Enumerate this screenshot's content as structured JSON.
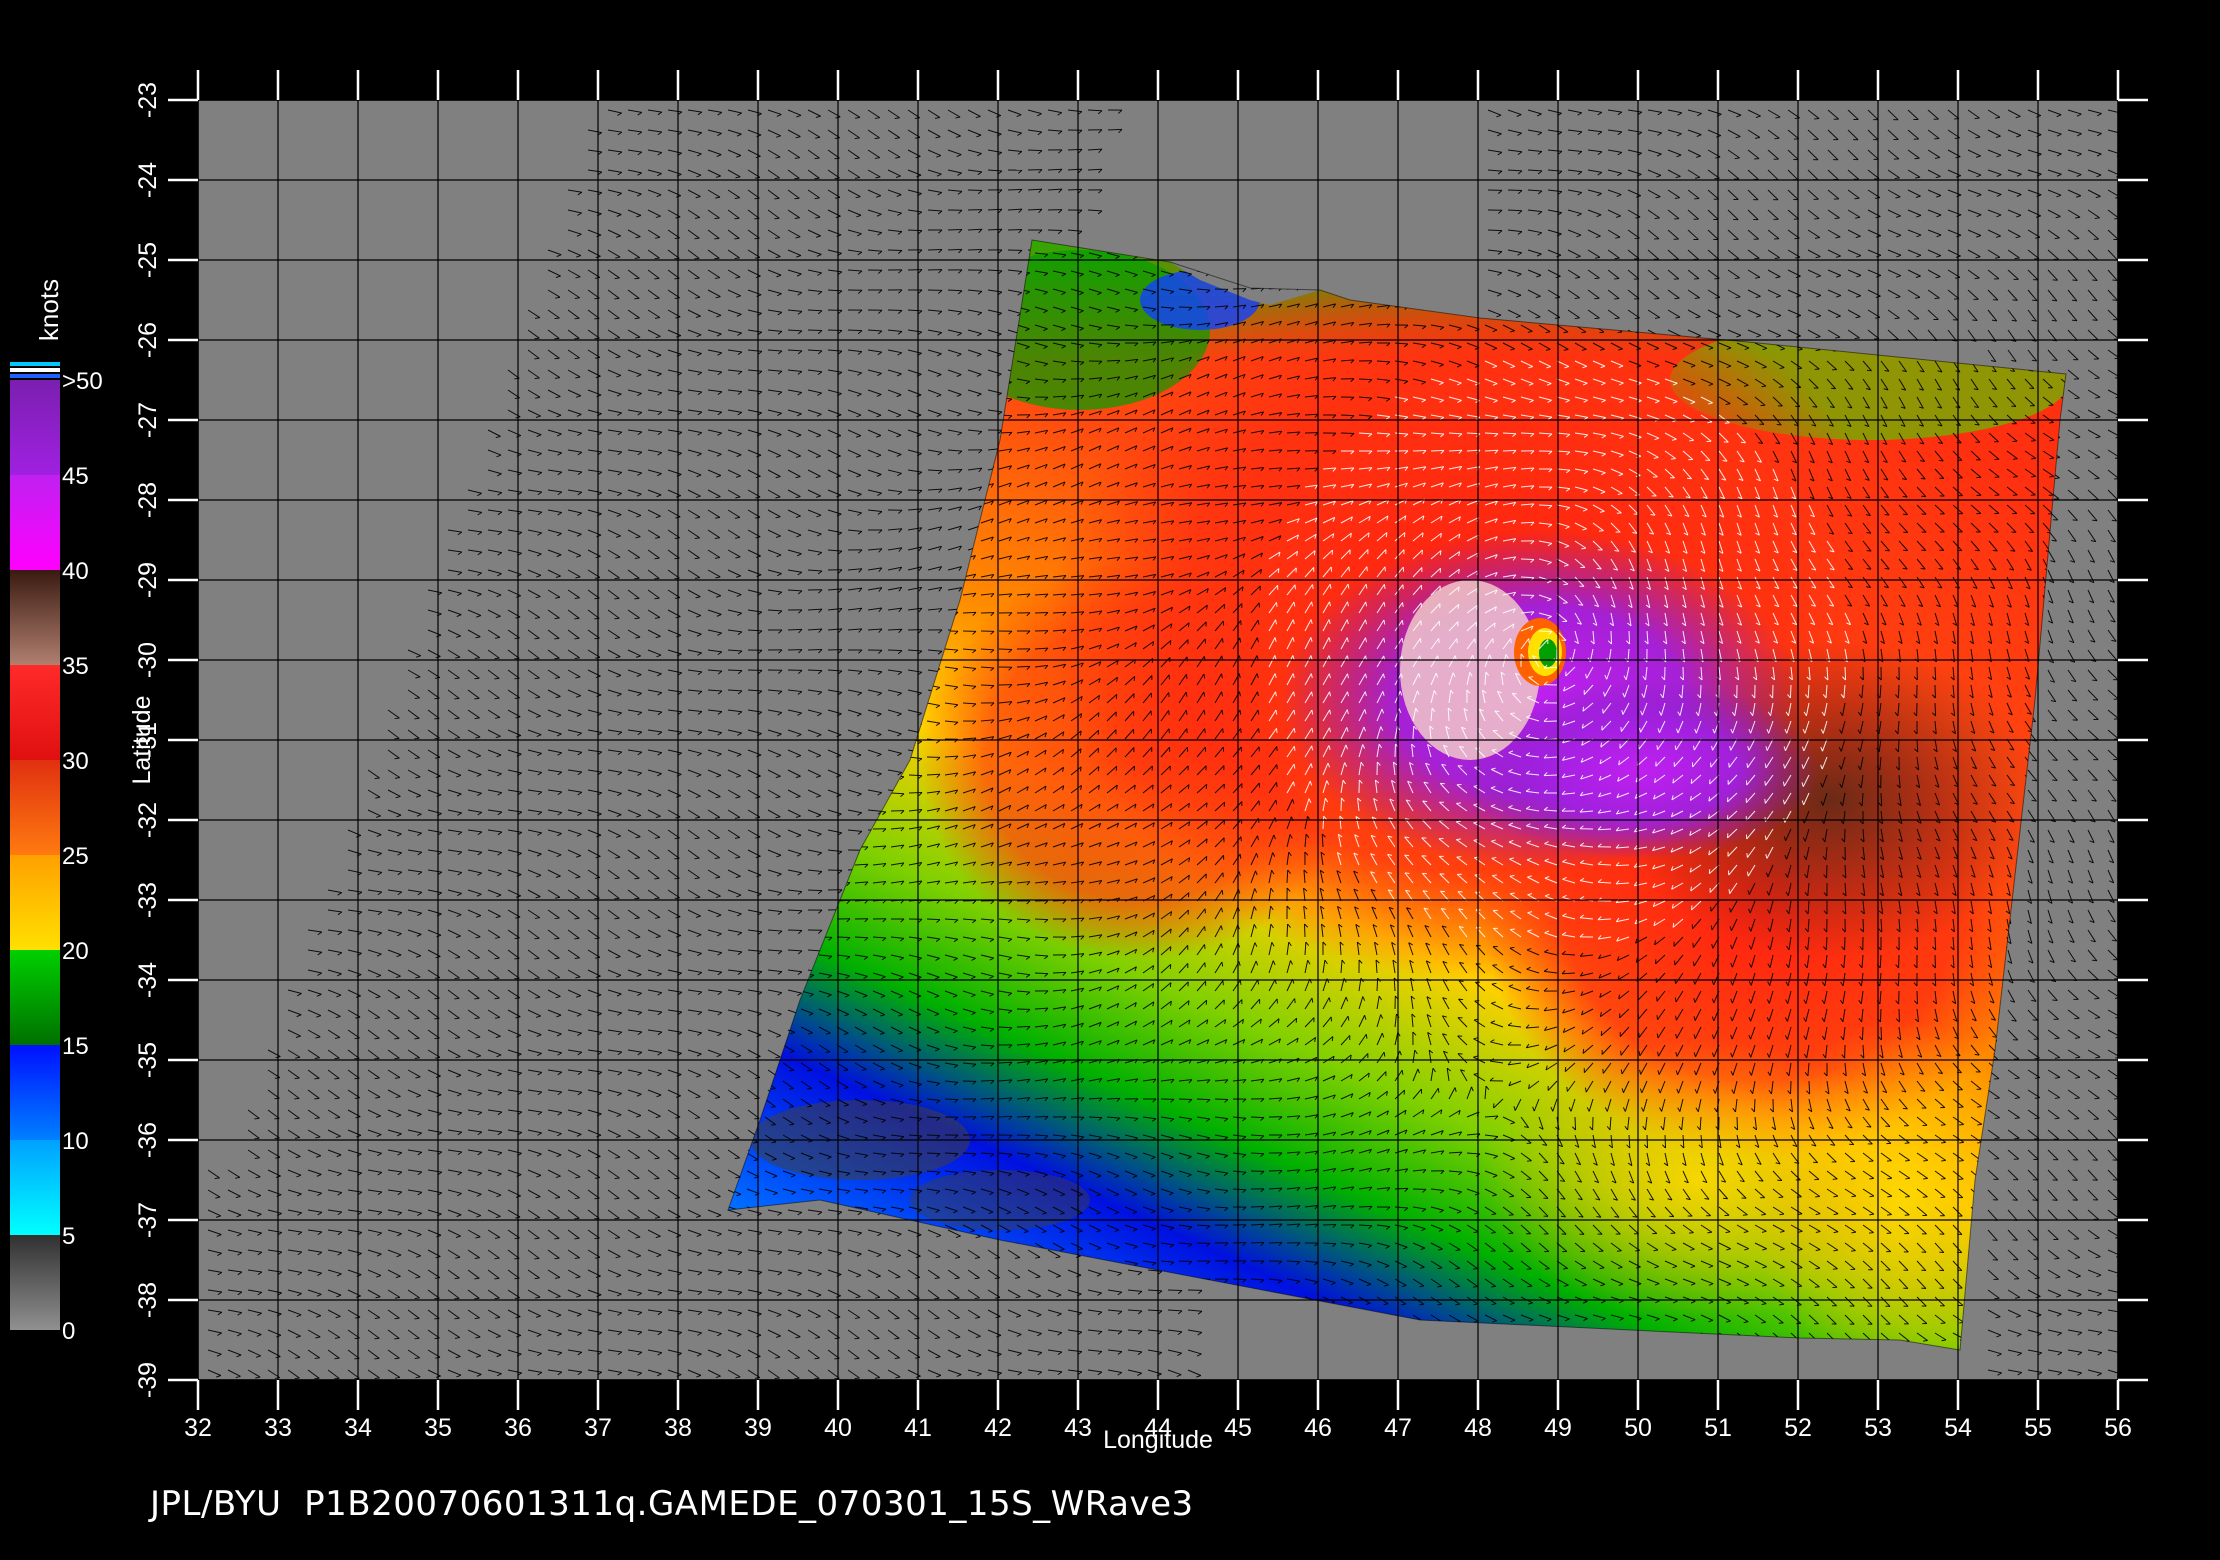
{
  "map": {
    "x_axis_label": "Longitude",
    "y_axis_label": "Latitude",
    "x_ticks": [
      "32",
      "33",
      "34",
      "35",
      "36",
      "37",
      "38",
      "39",
      "40",
      "41",
      "42",
      "43",
      "44",
      "45",
      "46",
      "47",
      "48",
      "49",
      "50",
      "51",
      "52",
      "53",
      "54",
      "55",
      "56"
    ],
    "y_ticks": [
      "-23",
      "-24",
      "-25",
      "-26",
      "-27",
      "-28",
      "-29",
      "-30",
      "-31",
      "-32",
      "-33",
      "-34",
      "-35",
      "-36",
      "-37",
      "-38",
      "-39"
    ],
    "lon_range": [
      32,
      56
    ],
    "lat_range": [
      -39,
      -23
    ],
    "background_color": "#808080",
    "grid_color": "#000000",
    "storm_center": {
      "lon": 48.9,
      "lat": -29.9
    }
  },
  "legend": {
    "title": "knots",
    "labels": [
      ">50",
      "45",
      "40",
      "35",
      "30",
      "25",
      "20",
      "15",
      "10",
      "5",
      "0"
    ],
    "bands": [
      {
        "from": 45,
        "to": 50,
        "top": "#7a1fb0",
        "bottom": "#a020e0"
      },
      {
        "from": 40,
        "to": 45,
        "top": "#c020f0",
        "bottom": "#ff00ff"
      },
      {
        "from": 35,
        "to": 40,
        "top": "#3a1a10",
        "bottom": "#b08070"
      },
      {
        "from": 30,
        "to": 35,
        "top": "#ff2a2a",
        "bottom": "#e01010"
      },
      {
        "from": 25,
        "to": 30,
        "top": "#e03010",
        "bottom": "#ff7a10"
      },
      {
        "from": 20,
        "to": 25,
        "top": "#ffa000",
        "bottom": "#ffe000"
      },
      {
        "from": 15,
        "to": 20,
        "top": "#00d000",
        "bottom": "#007000"
      },
      {
        "from": 10,
        "to": 15,
        "top": "#0010ff",
        "bottom": "#0080ff"
      },
      {
        "from": 5,
        "to": 10,
        "top": "#00a0ff",
        "bottom": "#00ffff"
      },
      {
        "from": 0,
        "to": 5,
        "top": "#303030",
        "bottom": "#909090"
      }
    ]
  },
  "footer": {
    "text": "JPL/BYU  P1B20070601311q.GAMEDE_070301_15S_WRave3"
  }
}
